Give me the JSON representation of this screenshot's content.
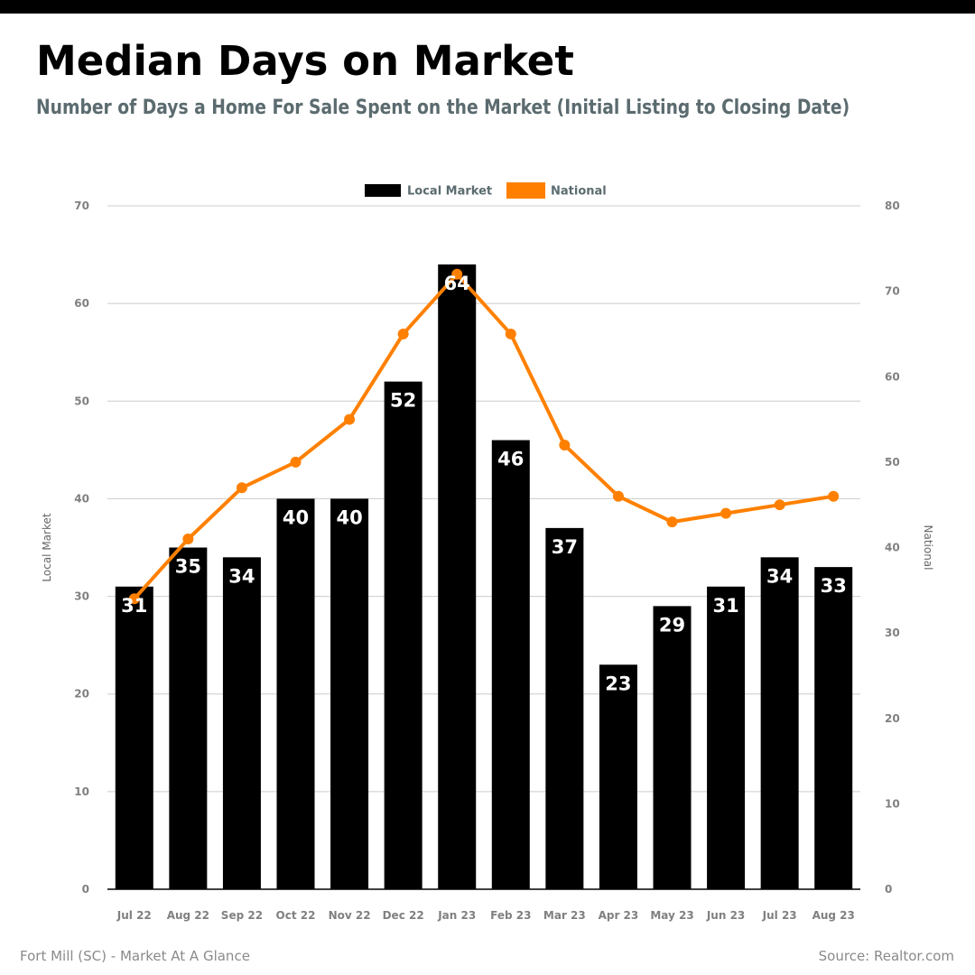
{
  "header": {
    "title": "Median Days on Market",
    "subtitle": "Number of Days a Home For Sale Spent on the Market (Initial Listing to Closing Date)"
  },
  "footer": {
    "left": "Fort Mill (SC) - Market At A Glance",
    "right": "Source: Realtor.com"
  },
  "chart_data": {
    "type": "bar",
    "categories": [
      "Jul 22",
      "Aug 22",
      "Sep 22",
      "Oct 22",
      "Nov 22",
      "Dec 22",
      "Jan 23",
      "Feb 23",
      "Mar 23",
      "Apr 23",
      "May 23",
      "Jun 23",
      "Jul 23",
      "Aug 23"
    ],
    "series": [
      {
        "name": "Local Market",
        "type": "bar",
        "axis": "left",
        "color": "#000000",
        "values": [
          31,
          35,
          34,
          40,
          40,
          52,
          64,
          46,
          37,
          23,
          29,
          31,
          34,
          33
        ]
      },
      {
        "name": "National",
        "type": "line",
        "axis": "right",
        "color": "#ff8000",
        "values": [
          34,
          41,
          47,
          50,
          55,
          65,
          72,
          65,
          52,
          46,
          43,
          44,
          45,
          46
        ]
      }
    ],
    "y_left": {
      "label": "Local Market",
      "min": 0,
      "max": 70,
      "ticks": [
        0,
        10,
        20,
        30,
        40,
        50,
        60,
        70
      ]
    },
    "y_right": {
      "label": "National",
      "min": 0,
      "max": 80,
      "ticks": [
        0,
        10,
        20,
        30,
        40,
        50,
        60,
        70,
        80
      ]
    },
    "legend": {
      "position": "top-center"
    },
    "grid": true,
    "data_labels": true
  }
}
